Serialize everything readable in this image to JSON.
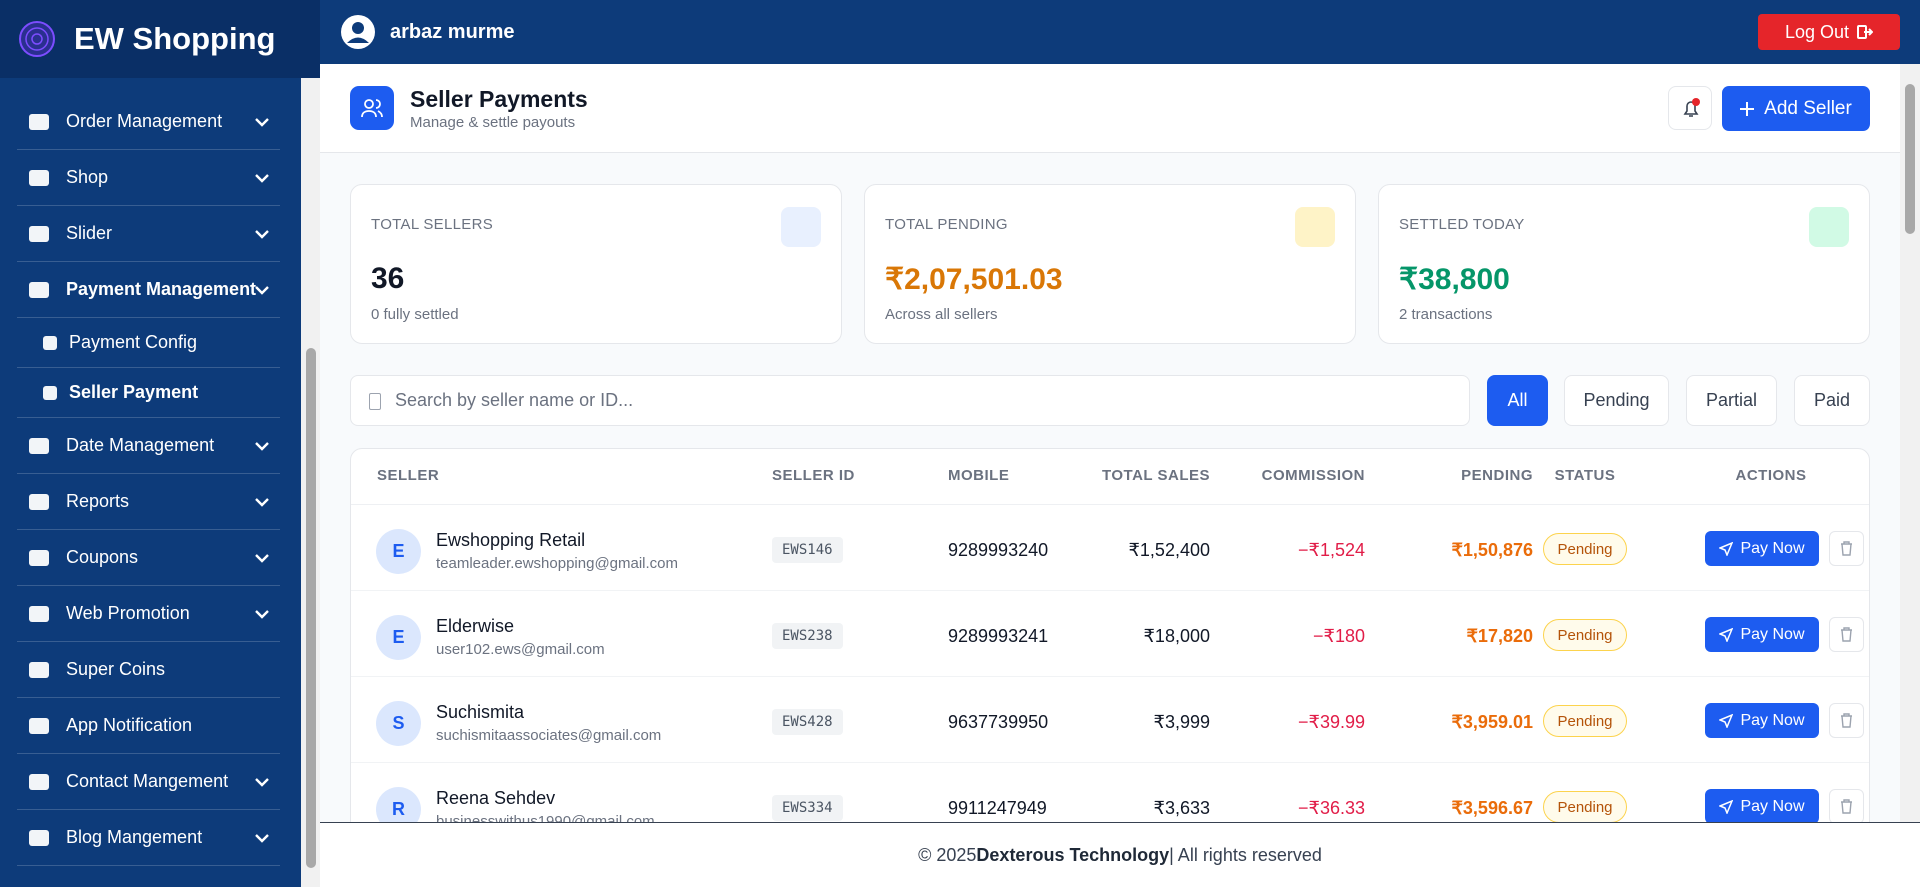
{
  "sidebar": {
    "brand": "EW Shopping",
    "menu": [
      {
        "label": "Order Management",
        "expandable": true
      },
      {
        "label": "Shop",
        "expandable": true
      },
      {
        "label": "Slider",
        "expandable": true
      },
      {
        "label": "Payment Management",
        "expandable": true,
        "children": [
          {
            "label": "Payment Config"
          },
          {
            "label": "Seller Payment"
          }
        ]
      },
      {
        "label": "Date Management",
        "expandable": true
      },
      {
        "label": "Reports",
        "expandable": true
      },
      {
        "label": "Coupons",
        "expandable": true
      },
      {
        "label": "Web Promotion",
        "expandable": true
      },
      {
        "label": "Super Coins",
        "expandable": false
      },
      {
        "label": "App Notification",
        "expandable": false
      },
      {
        "label": "Contact Mangement",
        "expandable": true
      },
      {
        "label": "Blog Mangement",
        "expandable": true
      }
    ]
  },
  "topbar": {
    "user": "arbaz murme",
    "logout": "Log Out"
  },
  "header": {
    "title": "Seller Payments",
    "subtitle": "Manage & settle payouts",
    "add_button": "Add Seller"
  },
  "stats": [
    {
      "label": "TOTAL SELLERS",
      "value": "36",
      "note": "0 fully settled"
    },
    {
      "label": "TOTAL PENDING",
      "value": "₹2,07,501.03",
      "note": "Across all sellers"
    },
    {
      "label": "SETTLED TODAY",
      "value": "₹38,800",
      "note": "2 transactions"
    }
  ],
  "search": {
    "placeholder": "Search by seller name or ID..."
  },
  "filters": [
    "All",
    "Pending",
    "Partial",
    "Paid"
  ],
  "table": {
    "columns": [
      "SELLER",
      "SELLER ID",
      "MOBILE",
      "TOTAL SALES",
      "COMMISSION",
      "PENDING",
      "STATUS",
      "ACTIONS"
    ],
    "rows": [
      {
        "initial": "E",
        "name": "Ewshopping Retail",
        "email": "teamleader.ewshopping@gmail.com",
        "seller_id": "EWS146",
        "mobile": "9289993240",
        "total_sales": "₹1,52,400",
        "commission": "−₹1,524",
        "pending": "₹1,50,876",
        "status": "Pending",
        "action": "Pay Now"
      },
      {
        "initial": "E",
        "name": "Elderwise",
        "email": "user102.ews@gmail.com",
        "seller_id": "EWS238",
        "mobile": "9289993241",
        "total_sales": "₹18,000",
        "commission": "−₹180",
        "pending": "₹17,820",
        "status": "Pending",
        "action": "Pay Now"
      },
      {
        "initial": "S",
        "name": "Suchismita",
        "email": "suchismitaassociates@gmail.com",
        "seller_id": "EWS428",
        "mobile": "9637739950",
        "total_sales": "₹3,999",
        "commission": "−₹39.99",
        "pending": "₹3,959.01",
        "status": "Pending",
        "action": "Pay Now"
      },
      {
        "initial": "R",
        "name": "Reena Sehdev",
        "email": "businesswithus1990@gmail.com",
        "seller_id": "EWS334",
        "mobile": "9911247949",
        "total_sales": "₹3,633",
        "commission": "−₹36.33",
        "pending": "₹3,596.67",
        "status": "Pending",
        "action": "Pay Now"
      }
    ]
  },
  "footer": {
    "prefix": "© 2025",
    "company": "Dexterous Technology",
    "suffix": "| All rights reserved"
  }
}
